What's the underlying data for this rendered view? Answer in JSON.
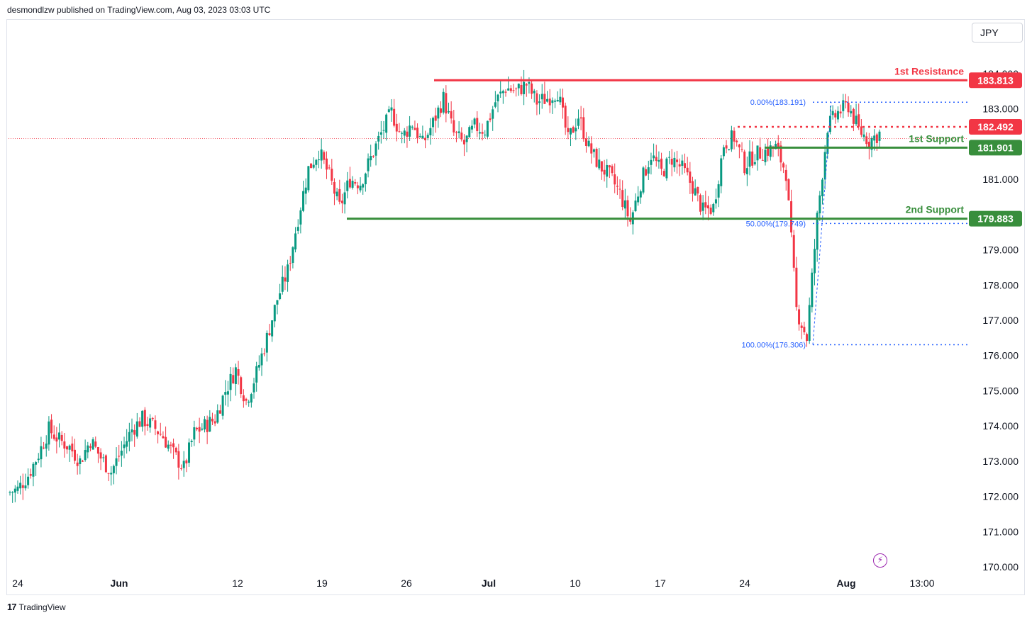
{
  "header": {
    "publisher": "desmondlzw published on TradingView.com, Aug 03, 2023 03:03 UTC"
  },
  "currency_button": "JPY",
  "footer": {
    "brand": "TradingView"
  },
  "colors": {
    "up": "#089981",
    "down": "#f23645",
    "resistance": "#f23645",
    "support": "#388e3c",
    "fib": "#2962ff"
  },
  "chart_data": {
    "type": "candlestick",
    "ylim": [
      170.0,
      184.0
    ],
    "y_ticks": [
      "170.000",
      "171.000",
      "172.000",
      "173.000",
      "174.000",
      "175.000",
      "176.000",
      "177.000",
      "178.000",
      "179.000",
      "180.000",
      "181.000",
      "182.000",
      "183.000",
      "184.000"
    ],
    "x_ticks": [
      "24",
      "Jun",
      "12",
      "19",
      "26",
      "Jul",
      "10",
      "17",
      "24",
      "Aug",
      "13:00"
    ],
    "price_markers": [
      {
        "value": 183.813,
        "label": "183.813",
        "kind": "resistance",
        "name": "1st Resistance"
      },
      {
        "value": 182.492,
        "label": "182.492",
        "kind": "current"
      },
      {
        "value": 181.901,
        "label": "181.901",
        "kind": "support",
        "name": "1st Support"
      },
      {
        "value": 179.883,
        "label": "179.883",
        "kind": "support",
        "name": "2nd Support"
      }
    ],
    "fibonacci": [
      {
        "label": "0.00%(183.191)",
        "value": 183.191
      },
      {
        "label": "50.00%(179.749)",
        "value": 179.749
      },
      {
        "label": "100.00%(176.306)",
        "value": 176.306
      }
    ],
    "close_path": [
      172.1,
      172.2,
      172.6,
      173.2,
      173.9,
      173.6,
      173.4,
      173.0,
      173.6,
      173.1,
      172.7,
      173.3,
      173.9,
      174.2,
      174.0,
      173.7,
      173.2,
      172.8,
      173.8,
      174.0,
      174.2,
      175.0,
      175.6,
      174.7,
      175.5,
      176.5,
      177.6,
      178.4,
      179.9,
      181.3,
      181.8,
      181.1,
      180.2,
      181.0,
      180.9,
      181.6,
      182.3,
      182.9,
      182.2,
      182.6,
      182.0,
      182.6,
      183.3,
      182.3,
      182.0,
      182.5,
      182.4,
      183.2,
      183.6,
      183.5,
      183.7,
      183.2,
      183.3,
      183.5,
      182.1,
      182.8,
      181.9,
      181.4,
      181.1,
      180.6,
      179.8,
      180.9,
      181.7,
      181.2,
      181.6,
      181.3,
      180.8,
      180.1,
      180.2,
      182.0,
      182.2,
      181.4,
      181.7,
      181.8,
      181.9,
      181.2,
      177.3,
      176.5,
      179.9,
      182.5,
      182.9,
      183.1,
      182.4,
      182.1,
      182.3
    ]
  }
}
